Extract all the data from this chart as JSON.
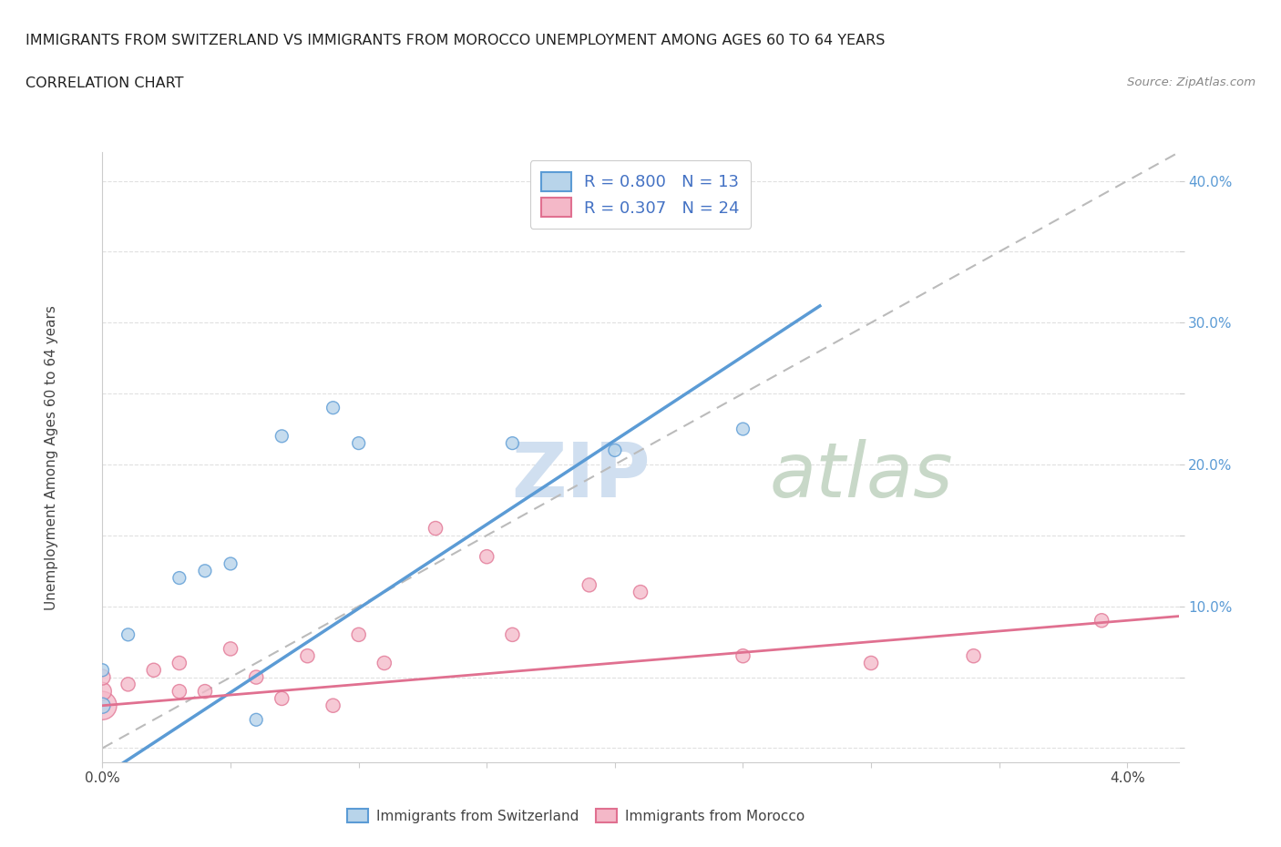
{
  "title_line1": "IMMIGRANTS FROM SWITZERLAND VS IMMIGRANTS FROM MOROCCO UNEMPLOYMENT AMONG AGES 60 TO 64 YEARS",
  "title_line2": "CORRELATION CHART",
  "source_text": "Source: ZipAtlas.com",
  "ylabel": "Unemployment Among Ages 60 to 64 years",
  "xlim": [
    0.0,
    0.042
  ],
  "ylim": [
    -0.01,
    0.42
  ],
  "xtick_positions": [
    0.0,
    0.005,
    0.01,
    0.015,
    0.02,
    0.025,
    0.03,
    0.035,
    0.04
  ],
  "xticklabels": [
    "0.0%",
    "",
    "",
    "",
    "",
    "",
    "",
    "",
    "4.0%"
  ],
  "ytick_positions": [
    0.0,
    0.05,
    0.1,
    0.15,
    0.2,
    0.25,
    0.3,
    0.35,
    0.4
  ],
  "yticklabels": [
    "",
    "",
    "10.0%",
    "",
    "20.0%",
    "",
    "30.0%",
    "",
    "40.0%"
  ],
  "swiss_color_fill": "#b8d4ea",
  "swiss_color_edge": "#5b9bd5",
  "morocco_color_fill": "#f4b8c8",
  "morocco_color_edge": "#e07090",
  "trend_swiss_color": "#5b9bd5",
  "trend_morocco_color": "#e07090",
  "trend_dashed_color": "#bbbbbb",
  "R_swiss": 0.8,
  "N_swiss": 13,
  "R_morocco": 0.307,
  "N_morocco": 24,
  "swiss_x": [
    0.0,
    0.0,
    0.001,
    0.003,
    0.004,
    0.005,
    0.006,
    0.007,
    0.009,
    0.01,
    0.016,
    0.02,
    0.025
  ],
  "swiss_y": [
    0.03,
    0.055,
    0.08,
    0.12,
    0.125,
    0.13,
    0.02,
    0.22,
    0.24,
    0.215,
    0.215,
    0.21,
    0.225
  ],
  "swiss_sizes": [
    150,
    100,
    100,
    100,
    100,
    100,
    100,
    100,
    100,
    100,
    100,
    100,
    100
  ],
  "morocco_x": [
    0.0,
    0.0,
    0.0,
    0.001,
    0.002,
    0.003,
    0.003,
    0.004,
    0.005,
    0.006,
    0.007,
    0.008,
    0.009,
    0.01,
    0.011,
    0.013,
    0.015,
    0.016,
    0.019,
    0.021,
    0.025,
    0.03,
    0.034,
    0.039
  ],
  "morocco_y": [
    0.03,
    0.04,
    0.05,
    0.045,
    0.055,
    0.04,
    0.06,
    0.04,
    0.07,
    0.05,
    0.035,
    0.065,
    0.03,
    0.08,
    0.06,
    0.155,
    0.135,
    0.08,
    0.115,
    0.11,
    0.065,
    0.06,
    0.065,
    0.09
  ],
  "morocco_sizes": [
    500,
    200,
    150,
    120,
    120,
    120,
    120,
    120,
    120,
    120,
    120,
    120,
    120,
    120,
    120,
    120,
    120,
    120,
    120,
    120,
    120,
    120,
    120,
    120
  ],
  "watermark_color": "#d0dff0",
  "background_color": "#ffffff",
  "grid_color": "#e0e0e0",
  "legend_R_color": "#4472c4",
  "legend_N_color": "#000000"
}
